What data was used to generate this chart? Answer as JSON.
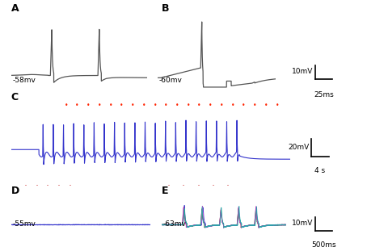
{
  "label_A": "-58mv",
  "label_B": "-60mv",
  "label_D": "-55mv",
  "label_E": "-63mv",
  "scalebar_AB_voltage": "10mV",
  "scalebar_AB_time": "25ms",
  "scalebar_C_voltage": "20mV",
  "scalebar_C_time": "4 s",
  "scalebar_DE_voltage": "10mV",
  "scalebar_DE_time": "500ms",
  "bg_color": "#ffffff",
  "trace_color_AB": "#555555",
  "trace_color_C": "#3333cc",
  "trace_color_D": "#3333cc",
  "trace_color_E_list": [
    "#cc3333",
    "#3333cc",
    "#33aa33",
    "#cc33cc",
    "#22aaaa"
  ],
  "red_dot_color": "#ff2200"
}
